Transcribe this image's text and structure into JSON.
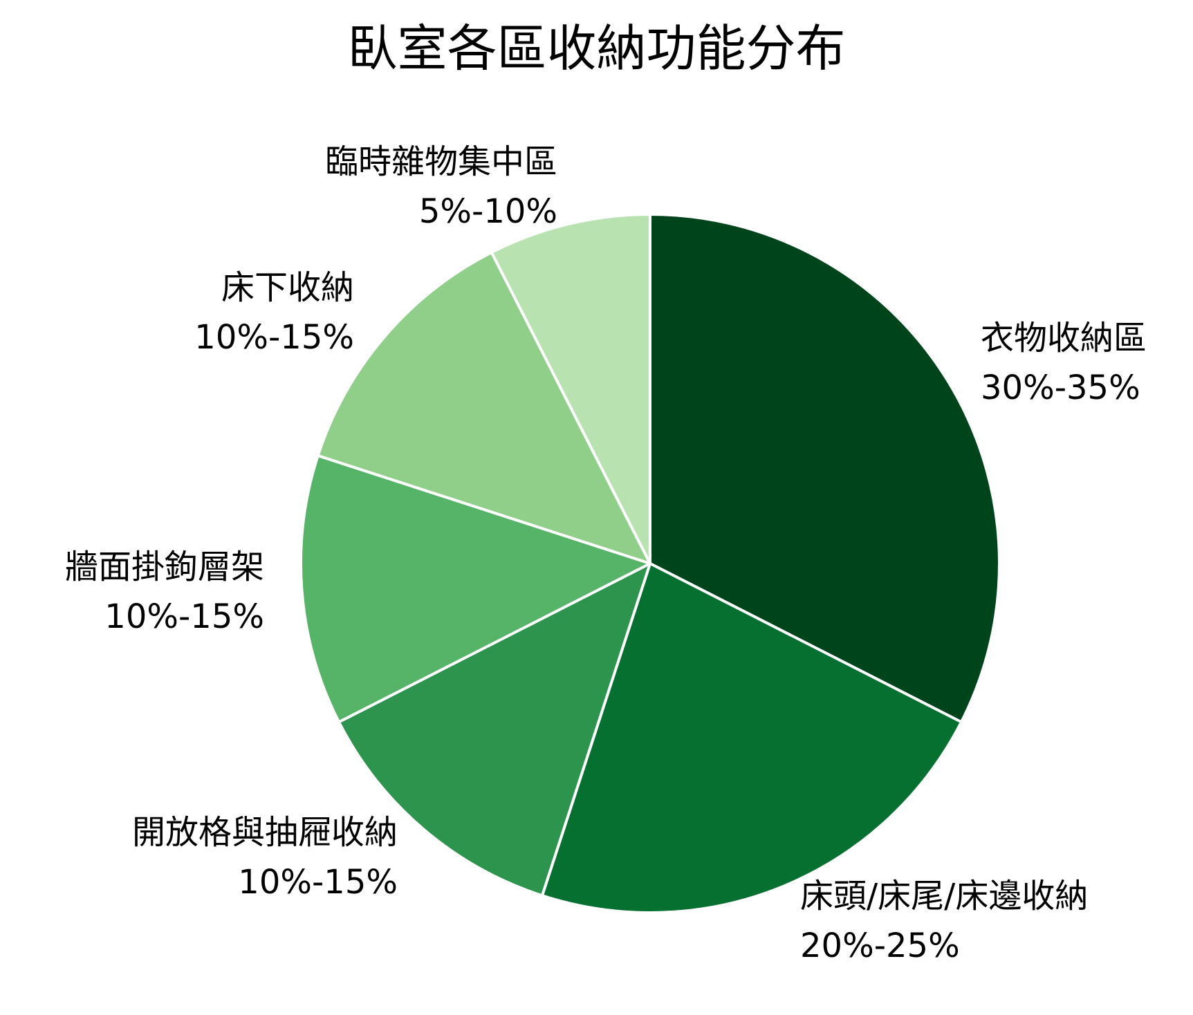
{
  "chart_data": {
    "type": "pie",
    "title": "臥室各區收納功能分布",
    "start_angle_deg": 0,
    "direction": "clockwise",
    "slices": [
      {
        "label": "衣物收納區",
        "range_text": "30%-35%",
        "value": 32.5,
        "color": "#00441b"
      },
      {
        "label": "床頭/床尾/床邊收納",
        "range_text": "20%-25%",
        "value": 22.5,
        "color": "#067030"
      },
      {
        "label": "開放格與抽屜收納",
        "range_text": "10%-15%",
        "value": 12.5,
        "color": "#2c944c"
      },
      {
        "label": "牆面掛鉤層架",
        "range_text": "10%-15%",
        "value": 12.5,
        "color": "#55b467"
      },
      {
        "label": "床下收納",
        "range_text": "10%-15%",
        "value": 12.5,
        "color": "#8fcf89"
      },
      {
        "label": "臨時雜物集中區",
        "range_text": "5%-10%",
        "value": 7.5,
        "color": "#b8e3b1"
      }
    ],
    "slice_border_color": "#ffffff",
    "legend": "none"
  }
}
